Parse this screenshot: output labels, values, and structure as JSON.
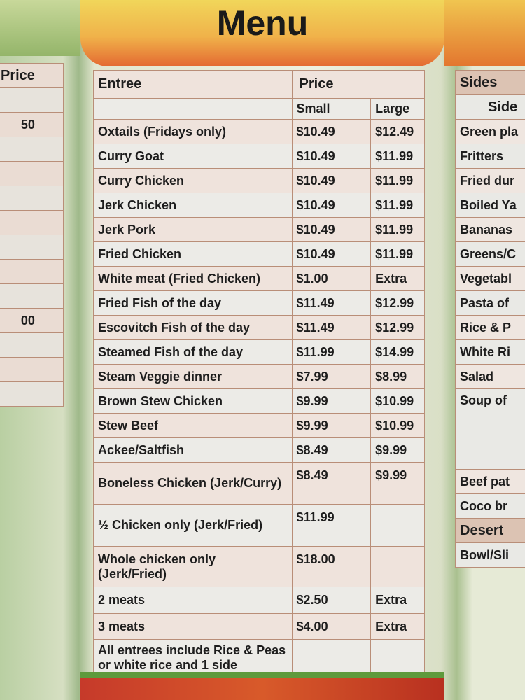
{
  "title": "Menu",
  "left_panel": {
    "header": "Price",
    "rows": [
      "",
      "50",
      "",
      "",
      "",
      "",
      "",
      "",
      "",
      "00",
      "",
      "",
      ""
    ]
  },
  "entree_table": {
    "header": {
      "entree": "Entree",
      "price": "Price",
      "small": "Small",
      "large": "Large"
    },
    "rows": [
      {
        "item": "Oxtails (Fridays only)",
        "small": "$10.49",
        "large": "$12.49"
      },
      {
        "item": "Curry Goat",
        "small": "$10.49",
        "large": "$11.99"
      },
      {
        "item": "Curry Chicken",
        "small": "$10.49",
        "large": "$11.99"
      },
      {
        "item": "Jerk Chicken",
        "small": "$10.49",
        "large": "$11.99"
      },
      {
        "item": "Jerk Pork",
        "small": "$10.49",
        "large": "$11.99"
      },
      {
        "item": "Fried Chicken",
        "small": "$10.49",
        "large": "$11.99"
      },
      {
        "item": "White meat (Fried Chicken)",
        "small": "$1.00",
        "large": "Extra"
      },
      {
        "item": "Fried Fish of the day",
        "small": "$11.49",
        "large": "$12.99"
      },
      {
        "item": "Escovitch Fish of the day",
        "small": "$11.49",
        "large": "$12.99"
      },
      {
        "item": "Steamed Fish of the day",
        "small": "$11.99",
        "large": "$14.99"
      },
      {
        "item": "Steam Veggie dinner",
        "small": "$7.99",
        "large": "$8.99"
      },
      {
        "item": "Brown Stew Chicken",
        "small": "$9.99",
        "large": "$10.99"
      },
      {
        "item": "Stew Beef",
        "small": "$9.99",
        "large": "$10.99"
      },
      {
        "item": "Ackee/Saltfish",
        "small": "$8.49",
        "large": "$9.99"
      },
      {
        "item": "Boneless Chicken (Jerk/Curry)",
        "small": "$8.49",
        "large": "$9.99"
      },
      {
        "item": "½ Chicken only (Jerk/Fried)",
        "small": "$11.99",
        "large": ""
      },
      {
        "item": "Whole chicken only (Jerk/Fried)",
        "small": "$18.00",
        "large": ""
      },
      {
        "item": "2 meats",
        "small": "$2.50",
        "large": "Extra"
      },
      {
        "item": "3 meats",
        "small": "$4.00",
        "large": "Extra"
      },
      {
        "item": "All entrees include Rice & Peas or white rice and 1 side",
        "small": "",
        "large": ""
      }
    ]
  },
  "sides_table": {
    "header": "Sides",
    "subheader": "Side",
    "rows": [
      "Green pla",
      "Fritters",
      "Fried dur",
      "Boiled Ya",
      "Bananas",
      "Greens/C",
      "Vegetabl",
      "Pasta of",
      "Rice & P",
      "White Ri",
      "Salad",
      "Soup of",
      "Beef pat",
      "Coco br"
    ],
    "desert_header": "Desert",
    "desert_rows": [
      "Bowl/Sli"
    ]
  }
}
